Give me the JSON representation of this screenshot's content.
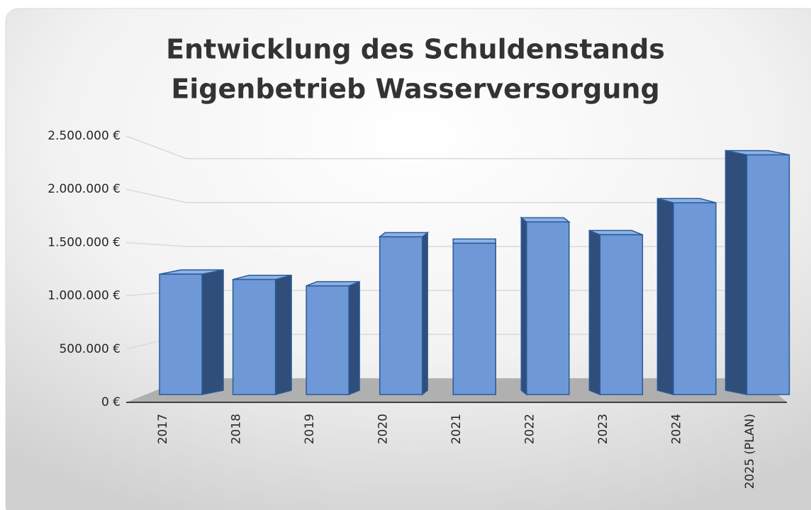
{
  "chart_data": {
    "type": "bar3d",
    "title": [
      "Entwicklung des Schuldenstands",
      "Eigenbetrieb Wasserversorgung"
    ],
    "categories": [
      "2017",
      "2018",
      "2019",
      "2020",
      "2021",
      "2022",
      "2023",
      "2024",
      "2025 (PLAN)"
    ],
    "values": [
      1130000,
      1080000,
      1020000,
      1480000,
      1420000,
      1620000,
      1500000,
      1800000,
      2250000
    ],
    "color": "#6f98d6",
    "ylim": [
      0,
      2500000
    ],
    "yticks": [
      {
        "value": 0,
        "label": "0 €"
      },
      {
        "value": 500000,
        "label": "500.000 €"
      },
      {
        "value": 1000000,
        "label": "1.000.000 €"
      },
      {
        "value": 1500000,
        "label": "1.500.000 €"
      },
      {
        "value": 2000000,
        "label": "2.000.000 €"
      },
      {
        "value": 2500000,
        "label": "2.500.000 €"
      }
    ],
    "grid": true
  }
}
